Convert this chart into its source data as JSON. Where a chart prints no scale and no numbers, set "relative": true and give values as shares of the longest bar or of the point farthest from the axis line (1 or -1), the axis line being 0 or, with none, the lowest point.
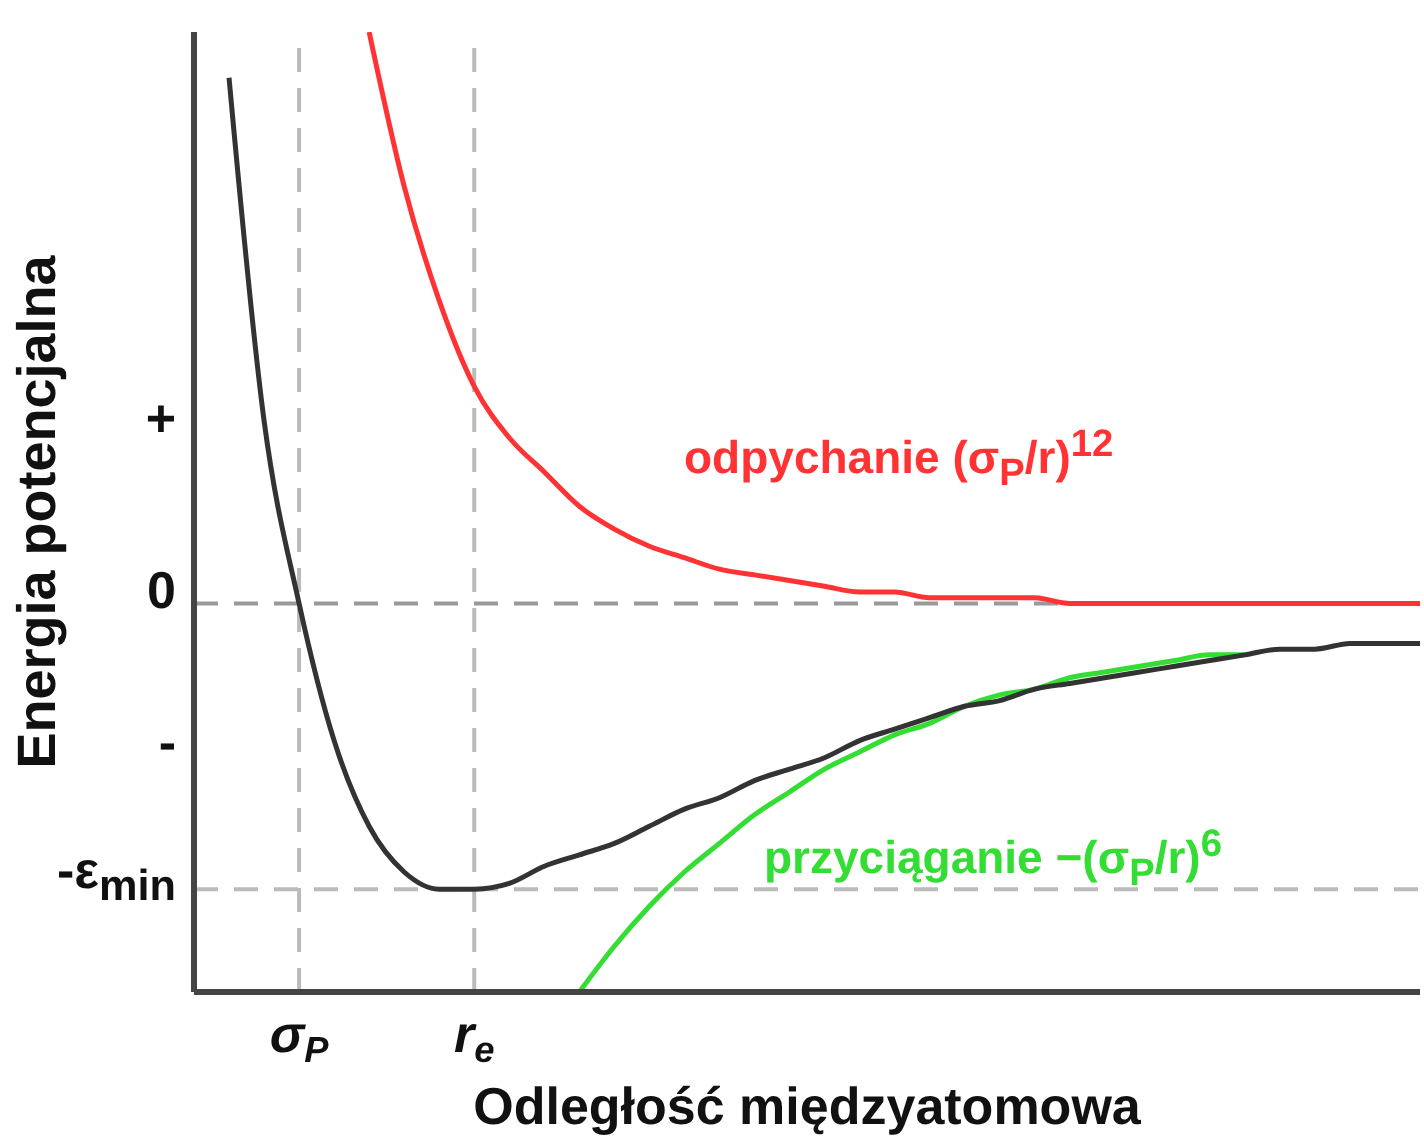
{
  "chart_data": {
    "type": "line",
    "relative": true,
    "xlabel": "Odległość międzyatomowa",
    "ylabel": "Energia potencjalna",
    "categories": [
      null,
      null,
      null,
      "σ$_{P}$",
      null,
      null,
      null,
      null,
      "r$_{e}$",
      null,
      null,
      null,
      null,
      null,
      null,
      null,
      null,
      null,
      null,
      null,
      null,
      null,
      null,
      null,
      null,
      null,
      null,
      null,
      null,
      null,
      null,
      null,
      null,
      null,
      null,
      null
    ],
    "grid": false,
    "legend": false,
    "marker": "none",
    "line_style": "solid",
    "series": [
      {
        "color": "#333333",
        "values": [
          null,
          0.92,
          0.32,
          0,
          -0.24,
          -0.39,
          -0.47,
          -0.5,
          -0.5,
          -0.49,
          -0.46,
          -0.44,
          -0.42,
          -0.39,
          -0.36,
          -0.34,
          -0.31,
          -0.29,
          -0.27,
          -0.24,
          -0.22,
          -0.2,
          -0.18,
          -0.17,
          -0.15,
          -0.14,
          -0.13,
          -0.12,
          -0.11,
          -0.1,
          -0.09,
          -0.08,
          -0.08,
          -0.07,
          -0.07,
          -0.07
        ]
      },
      {
        "name": "odpychanie (σ$_{P}$/r)$^{12}$",
        "color": "#ff3333",
        "values": [
          null,
          null,
          null,
          null,
          null,
          1.0,
          0.73,
          0.53,
          0.38,
          0.29,
          0.23,
          0.17,
          0.13,
          0.1,
          0.08,
          0.06,
          0.05,
          0.04,
          0.03,
          0.02,
          0.02,
          0.01,
          0.01,
          0.01,
          0.01,
          0,
          0,
          0,
          0,
          0,
          0,
          0,
          0,
          0,
          0,
          0
        ]
      },
      {
        "name": "przyciąganie −(σ$_{P}$/r)$^{6}$",
        "color": "#33dd33",
        "values": [
          null,
          null,
          null,
          null,
          null,
          null,
          null,
          null,
          null,
          null,
          null,
          -0.68,
          -0.6,
          -0.53,
          -0.47,
          -0.42,
          -0.37,
          -0.33,
          -0.29,
          -0.26,
          -0.23,
          -0.21,
          -0.18,
          -0.16,
          -0.15,
          -0.13,
          -0.12,
          -0.11,
          -0.1,
          -0.09,
          -0.09,
          null,
          null,
          null,
          null,
          null
        ]
      }
    ],
    "annotations": [
      "+",
      "0",
      "-",
      "-ε$_{min}$"
    ],
    "ref_lines": [
      {
        "axis": "y",
        "value": 0,
        "color": "#999999",
        "line_style": "dashed"
      },
      {
        "axis": "y",
        "value": -0.5,
        "color": "#bbbbbb",
        "line_style": "dashed"
      },
      {
        "axis": "x",
        "value": "σ$_{P}$",
        "color": "#bbbbbb",
        "line_style": "dashed"
      },
      {
        "axis": "x",
        "value": "r$_{e}$",
        "color": "#bbbbbb",
        "line_style": "dashed"
      }
    ]
  }
}
